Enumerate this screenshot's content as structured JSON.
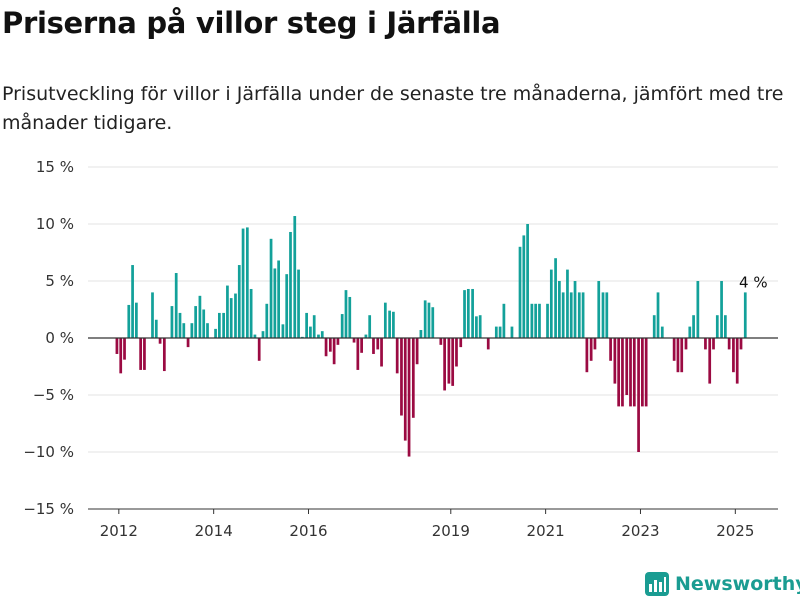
{
  "title": "Priserna på villor steg i Järfälla",
  "subtitle": "Prisutveckling för villor i Järfälla under de senaste tre månaderna, jämfört med tre månader tidigare.",
  "brand": "Newsworthy",
  "colors": {
    "positive": "#13a19a",
    "negative": "#9b0a42",
    "brand": "#1a9c92"
  },
  "chart_data": {
    "type": "bar",
    "unit": "%",
    "ylim": [
      -15,
      15
    ],
    "yticks": [
      -15,
      -10,
      -5,
      0,
      5,
      10,
      15
    ],
    "ytick_labels": [
      "−15 %",
      "−10 %",
      "−5 %",
      "0 %",
      "5 %",
      "10 %",
      "15 %"
    ],
    "xlim": [
      2011.35,
      2025.9
    ],
    "xticks": [
      2012,
      2014,
      2016,
      2019,
      2021,
      2023,
      2025
    ],
    "xtick_labels": [
      "2012",
      "2014",
      "2016",
      "2019",
      "2021",
      "2023",
      "2025"
    ],
    "annotation": {
      "text": "4 %",
      "x": 2025.0,
      "y": 4
    },
    "grid": true,
    "x": [
      2011.96,
      2012.04,
      2012.12,
      2012.21,
      2012.29,
      2012.37,
      2012.46,
      2012.54,
      2012.62,
      2012.71,
      2012.79,
      2012.87,
      2012.96,
      2013.04,
      2013.12,
      2013.21,
      2013.29,
      2013.37,
      2013.46,
      2013.54,
      2013.62,
      2013.71,
      2013.79,
      2013.87,
      2013.96,
      2014.04,
      2014.12,
      2014.21,
      2014.29,
      2014.37,
      2014.46,
      2014.54,
      2014.62,
      2014.71,
      2014.79,
      2014.87,
      2014.96,
      2015.04,
      2015.12,
      2015.21,
      2015.29,
      2015.37,
      2015.46,
      2015.54,
      2015.62,
      2015.71,
      2015.79,
      2015.87,
      2015.96,
      2016.04,
      2016.12,
      2016.21,
      2016.29,
      2016.37,
      2016.46,
      2016.54,
      2016.62,
      2016.71,
      2016.79,
      2016.87,
      2016.96,
      2017.04,
      2017.12,
      2017.21,
      2017.29,
      2017.37,
      2017.46,
      2017.54,
      2017.62,
      2017.71,
      2017.79,
      2017.87,
      2017.96,
      2018.04,
      2018.12,
      2018.21,
      2018.29,
      2018.37,
      2018.46,
      2018.54,
      2018.62,
      2018.71,
      2018.79,
      2018.87,
      2018.96,
      2019.04,
      2019.12,
      2019.21,
      2019.29,
      2019.37,
      2019.46,
      2019.54,
      2019.62,
      2019.71,
      2019.79,
      2019.87,
      2019.96,
      2020.04,
      2020.12,
      2020.21,
      2020.29,
      2020.37,
      2020.46,
      2020.54,
      2020.62,
      2020.71,
      2020.79,
      2020.87,
      2020.96,
      2021.04,
      2021.12,
      2021.21,
      2021.29,
      2021.37,
      2021.46,
      2021.54,
      2021.62,
      2021.71,
      2021.79,
      2021.87,
      2021.96,
      2022.04,
      2022.12,
      2022.21,
      2022.29,
      2022.37,
      2022.46,
      2022.54,
      2022.62,
      2022.71,
      2022.79,
      2022.87,
      2022.96,
      2023.04,
      2023.12,
      2023.21,
      2023.29,
      2023.37,
      2023.46,
      2023.54,
      2023.62,
      2023.71,
      2023.79,
      2023.87,
      2023.96,
      2024.04,
      2024.12,
      2024.21,
      2024.29,
      2024.37,
      2024.46,
      2024.54,
      2024.62,
      2024.71,
      2024.79,
      2024.87,
      2024.96,
      2025.04,
      2025.12,
      2025.21
    ],
    "values": [
      -1.4,
      -3.1,
      -1.9,
      2.9,
      6.4,
      3.1,
      -2.8,
      -2.8,
      0,
      4.0,
      1.6,
      -0.5,
      -2.9,
      0,
      2.8,
      5.7,
      2.2,
      1.3,
      -0.8,
      1.3,
      2.8,
      3.7,
      2.5,
      1.3,
      0,
      0.8,
      2.2,
      2.2,
      4.6,
      3.5,
      3.9,
      6.4,
      9.6,
      9.7,
      4.3,
      0.3,
      -2.0,
      0.6,
      3.0,
      8.7,
      6.1,
      6.8,
      1.2,
      5.6,
      9.3,
      10.7,
      6.0,
      0.1,
      2.2,
      1.0,
      2.0,
      0.3,
      0.6,
      -1.6,
      -1.2,
      -2.3,
      -0.6,
      2.1,
      4.2,
      3.6,
      -0.4,
      -2.8,
      -1.3,
      0.3,
      2.0,
      -1.4,
      -1.0,
      -2.5,
      3.1,
      2.4,
      2.3,
      -3.1,
      -6.8,
      -9.0,
      -10.4,
      -7.0,
      -2.3,
      0.7,
      3.3,
      3.1,
      2.7,
      0,
      -0.6,
      -4.6,
      -4.0,
      -4.2,
      -2.5,
      -0.8,
      4.2,
      4.3,
      4.3,
      1.9,
      2.0,
      0,
      -1.0,
      0,
      1.0,
      1.0,
      3.0,
      0,
      1.0,
      0,
      8.0,
      9.0,
      10.0,
      3.0,
      3.0,
      3.0,
      0,
      3.0,
      6.0,
      7.0,
      5.0,
      4.0,
      6.0,
      4.0,
      5.0,
      4.0,
      4.0,
      -3.0,
      -2.0,
      -1.0,
      5.0,
      4.0,
      4.0,
      -2.0,
      -4.0,
      -6.0,
      -6.0,
      -5.0,
      -6.0,
      -6.0,
      -10.0,
      -6.0,
      -6.0,
      0,
      2.0,
      4.0,
      1.0,
      0,
      0,
      -2.0,
      -3.0,
      -3.0,
      -1.0,
      1.0,
      2.0,
      5.0,
      0,
      -1.0,
      -4.0,
      -1.0,
      2.0,
      5.0,
      2.0,
      -1.0,
      -3.0,
      -4.0,
      -1.0,
      4.0
    ]
  }
}
